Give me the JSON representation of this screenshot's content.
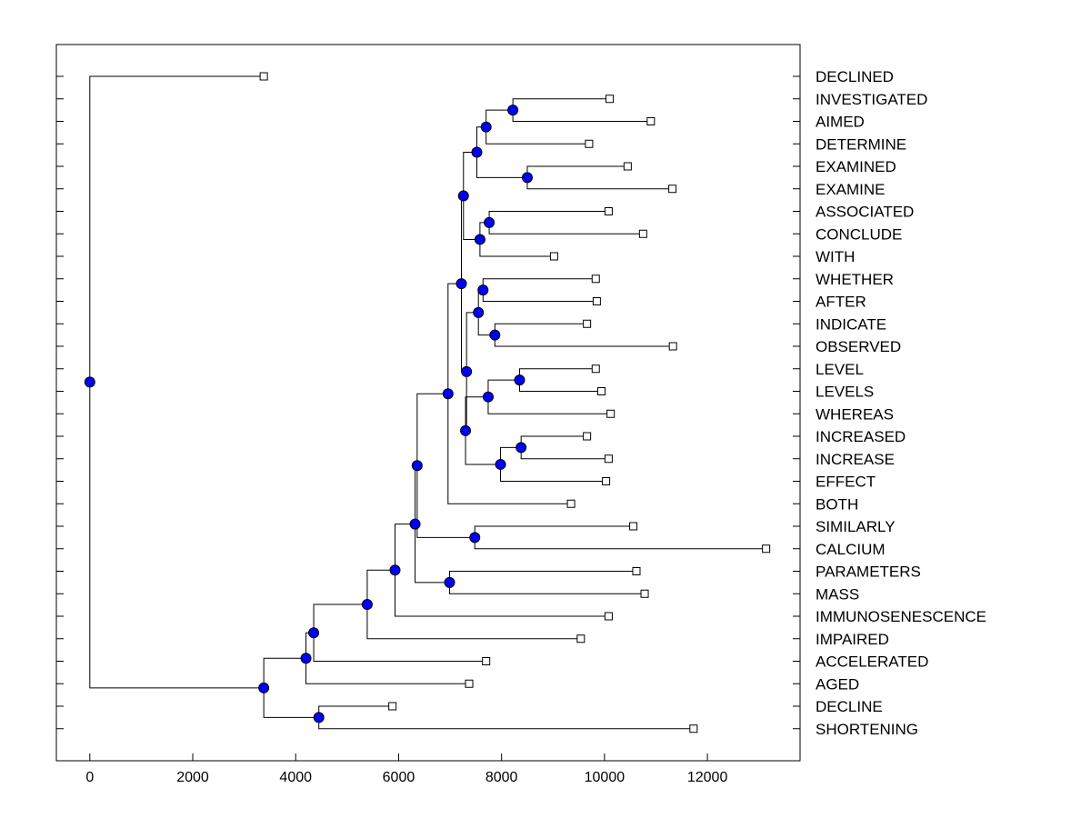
{
  "chart_data": {
    "type": "dendrogram",
    "orientation": "horizontal",
    "xlim": [
      -650,
      13800
    ],
    "xticks": [
      0,
      2000,
      4000,
      6000,
      8000,
      10000,
      12000
    ],
    "title": "",
    "xlabel": "",
    "ylabel": "",
    "colors": {
      "node_fill": "#0000ff",
      "leaf_fill": "#ffffff",
      "stroke": "#000000"
    },
    "leaves": [
      {
        "label": "DECLINED",
        "value": 3380
      },
      {
        "label": "INVESTIGATED",
        "value": 10100
      },
      {
        "label": "AIMED",
        "value": 10900
      },
      {
        "label": "DETERMINE",
        "value": 9700
      },
      {
        "label": "EXAMINED",
        "value": 10450
      },
      {
        "label": "EXAMINE",
        "value": 11320
      },
      {
        "label": "ASSOCIATED",
        "value": 10080
      },
      {
        "label": "CONCLUDE",
        "value": 10750
      },
      {
        "label": "WITH",
        "value": 9020
      },
      {
        "label": "WHETHER",
        "value": 9830
      },
      {
        "label": "AFTER",
        "value": 9850
      },
      {
        "label": "INDICATE",
        "value": 9660
      },
      {
        "label": "OBSERVED",
        "value": 11330
      },
      {
        "label": "LEVEL",
        "value": 9830
      },
      {
        "label": "LEVELS",
        "value": 9940
      },
      {
        "label": "WHEREAS",
        "value": 10120
      },
      {
        "label": "INCREASED",
        "value": 9660
      },
      {
        "label": "INCREASE",
        "value": 10080
      },
      {
        "label": "EFFECT",
        "value": 10030
      },
      {
        "label": "BOTH",
        "value": 9350
      },
      {
        "label": "SIMILARLY",
        "value": 10560
      },
      {
        "label": "CALCIUM",
        "value": 13140
      },
      {
        "label": "PARAMETERS",
        "value": 10620
      },
      {
        "label": "MASS",
        "value": 10780
      },
      {
        "label": "IMMUNOSENESCENCE",
        "value": 10080
      },
      {
        "label": "IMPAIRED",
        "value": 9540
      },
      {
        "label": "ACCELERATED",
        "value": 7700
      },
      {
        "label": "AGED",
        "value": 7370
      },
      {
        "label": "DECLINE",
        "value": 5880
      },
      {
        "label": "SHORTENING",
        "value": 11730
      }
    ],
    "merges": [
      {
        "id": "n1",
        "children": [
          "INVESTIGATED",
          "AIMED"
        ],
        "value": 8220
      },
      {
        "id": "n2",
        "children": [
          "n1",
          "DETERMINE"
        ],
        "value": 7700
      },
      {
        "id": "n3",
        "children": [
          "EXAMINED",
          "EXAMINE"
        ],
        "value": 8500
      },
      {
        "id": "n4",
        "children": [
          "n2",
          "n3"
        ],
        "value": 7520
      },
      {
        "id": "n5",
        "children": [
          "ASSOCIATED",
          "CONCLUDE"
        ],
        "value": 7760
      },
      {
        "id": "n6",
        "children": [
          "n5",
          "WITH"
        ],
        "value": 7580
      },
      {
        "id": "n7",
        "children": [
          "n4",
          "n6"
        ],
        "value": 7260
      },
      {
        "id": "n8",
        "children": [
          "WHETHER",
          "AFTER"
        ],
        "value": 7640
      },
      {
        "id": "n9",
        "children": [
          "INDICATE",
          "OBSERVED"
        ],
        "value": 7870
      },
      {
        "id": "n10",
        "children": [
          "n8",
          "n9"
        ],
        "value": 7550
      },
      {
        "id": "n11",
        "children": [
          "LEVEL",
          "LEVELS"
        ],
        "value": 8350
      },
      {
        "id": "n12",
        "children": [
          "n11",
          "WHEREAS"
        ],
        "value": 7740
      },
      {
        "id": "n13",
        "children": [
          "INCREASED",
          "INCREASE"
        ],
        "value": 8380
      },
      {
        "id": "n14",
        "children": [
          "n13",
          "EFFECT"
        ],
        "value": 7980
      },
      {
        "id": "n15",
        "children": [
          "n12",
          "n14"
        ],
        "value": 7300
      },
      {
        "id": "n16",
        "children": [
          "n10",
          "n15"
        ],
        "value": 7320
      },
      {
        "id": "n17",
        "children": [
          "n7",
          "n16"
        ],
        "value": 7220
      },
      {
        "id": "n18",
        "children": [
          "n17",
          "BOTH"
        ],
        "value": 6960
      },
      {
        "id": "n19",
        "children": [
          "SIMILARLY",
          "CALCIUM"
        ],
        "value": 7480
      },
      {
        "id": "n20",
        "children": [
          "n18",
          "n19"
        ],
        "value": 6360
      },
      {
        "id": "n21",
        "children": [
          "PARAMETERS",
          "MASS"
        ],
        "value": 6990
      },
      {
        "id": "n22",
        "children": [
          "n20",
          "n21"
        ],
        "value": 6320
      },
      {
        "id": "n23",
        "children": [
          "n22",
          "IMMUNOSENESCENCE"
        ],
        "value": 5930
      },
      {
        "id": "n24",
        "children": [
          "n23",
          "IMPAIRED"
        ],
        "value": 5390
      },
      {
        "id": "n25",
        "children": [
          "n24",
          "ACCELERATED"
        ],
        "value": 4350
      },
      {
        "id": "n26",
        "children": [
          "n25",
          "AGED"
        ],
        "value": 4200
      },
      {
        "id": "n27",
        "children": [
          "DECLINE",
          "SHORTENING"
        ],
        "value": 4450
      },
      {
        "id": "n28",
        "children": [
          "n26",
          "n27"
        ],
        "value": 3380
      },
      {
        "id": "n29",
        "children": [
          "DECLINED",
          "n28"
        ],
        "value": 0
      }
    ]
  }
}
